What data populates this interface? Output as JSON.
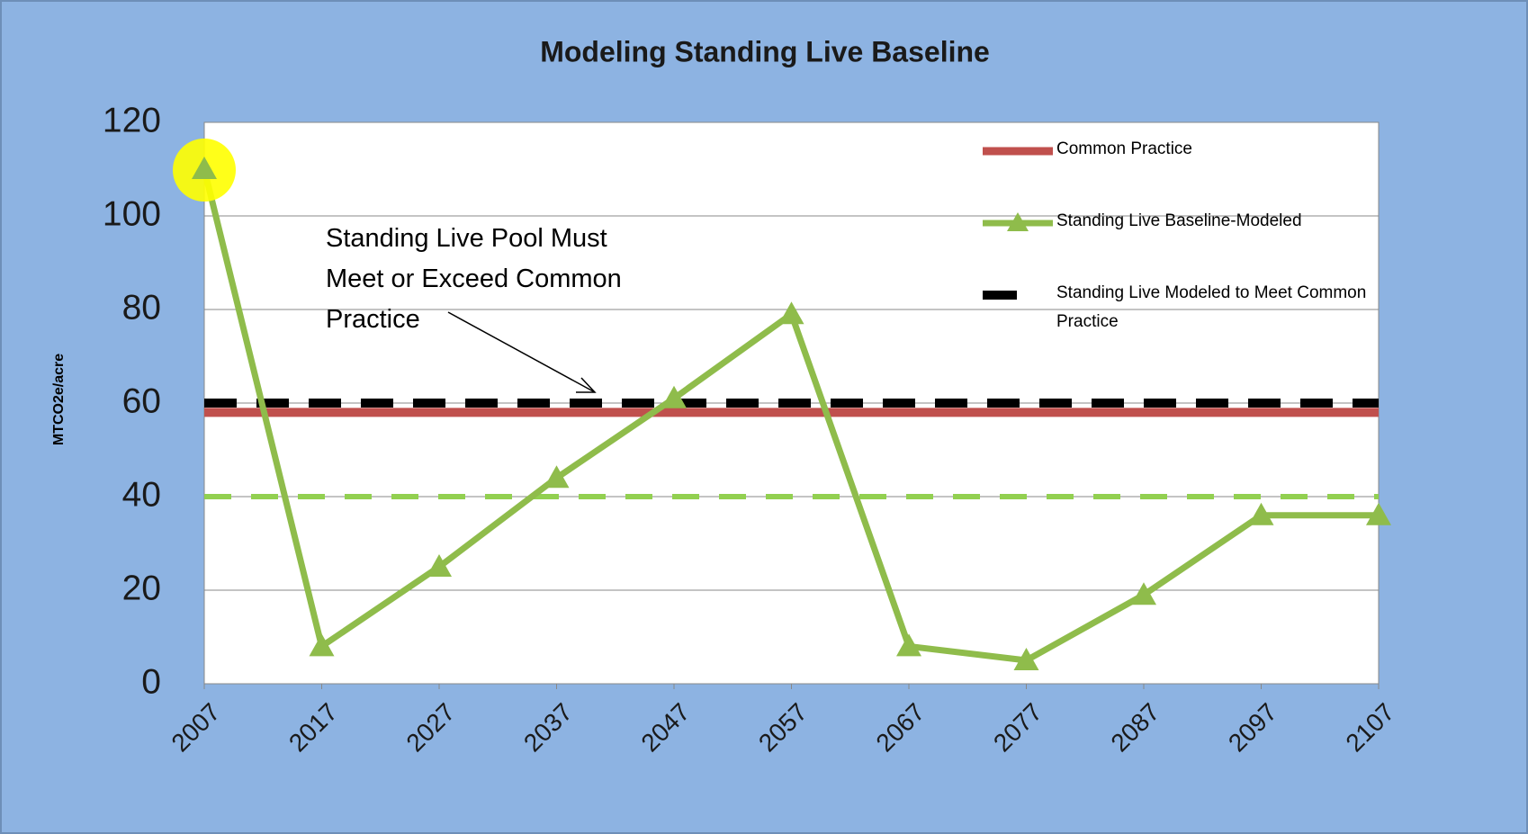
{
  "chart_data": {
    "type": "line",
    "title": "Modeling Standing Live Baseline",
    "y_label": "MTCO2e/acre",
    "annotation": [
      "Standing Live Pool Must",
      "Meet or Exceed Common",
      "Practice"
    ],
    "x": [
      2007,
      2017,
      2027,
      2037,
      2047,
      2057,
      2067,
      2077,
      2087,
      2097,
      2107
    ],
    "xlim": [
      2007,
      2107
    ],
    "xticks": [
      2007,
      2017,
      2027,
      2037,
      2047,
      2057,
      2067,
      2077,
      2087,
      2097,
      2107
    ],
    "ylim": [
      0,
      120
    ],
    "yticks": [
      0,
      20,
      40,
      60,
      80,
      100,
      120
    ],
    "grid": true,
    "legend": "right",
    "series": [
      {
        "color": "#92d050",
        "style": "dashed",
        "values": [
          40,
          40,
          40,
          40,
          40,
          40,
          40,
          40,
          40,
          40,
          40
        ]
      },
      {
        "name": "Common Practice",
        "color": "#c0504d",
        "style": "solid",
        "values": [
          58,
          58,
          58,
          58,
          58,
          58,
          58,
          58,
          58,
          58,
          58
        ]
      },
      {
        "name": "Standing Live Modeled to Meet Common Practice",
        "color": "#000000",
        "style": "dashed",
        "values": [
          60,
          60,
          60,
          60,
          60,
          60,
          60,
          60,
          60,
          60,
          60
        ]
      },
      {
        "name": "Standing Live Baseline-Modeled",
        "color": "#8fbc4b",
        "style": "solid",
        "marker": "triangle",
        "values": [
          110,
          8,
          25,
          44,
          61,
          79,
          8,
          5,
          19,
          36,
          36
        ]
      }
    ],
    "legend_order": [
      1,
      3,
      2
    ]
  }
}
